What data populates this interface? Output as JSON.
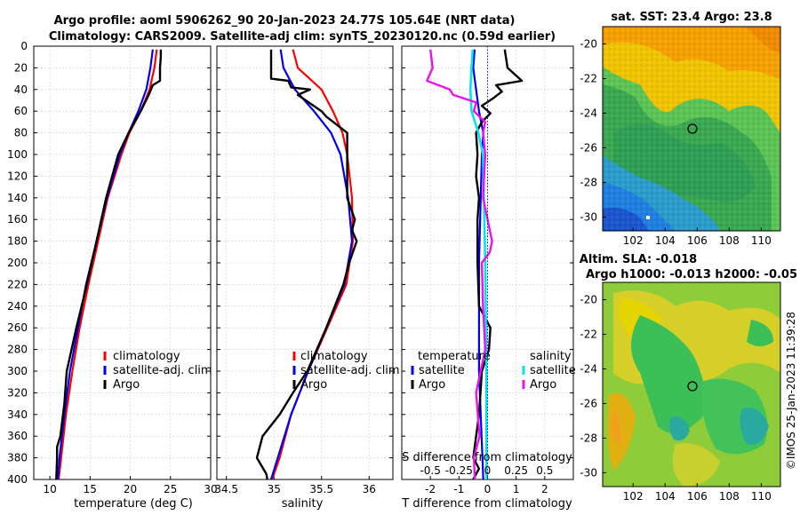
{
  "header": {
    "title_line1": "Argo profile: aoml 5906262_90 20-Jan-2023 24.77S 105.64E (NRT data)",
    "title_line2": "Climatology: CARS2009. Satellite-adj clim: synTS_20230120.nc (0.59d earlier)"
  },
  "footer": {
    "stamp": "©IMOS 25-Jan-2023 11:39:28"
  },
  "colors": {
    "climatology": "#ff0000",
    "satellite": "#0000ee",
    "argo": "#000000",
    "salinity_sat": "#00e5ee",
    "salinity_argo": "#ee11ee",
    "zero_line": "#1010cc"
  },
  "chart_data": [
    {
      "id": "temperature",
      "type": "line",
      "xlabel": "temperature (deg C)",
      "ylabel": "",
      "xlim": [
        8,
        30
      ],
      "ylim": [
        400,
        0
      ],
      "xticks": [
        "10",
        "15",
        "20",
        "25",
        "30"
      ],
      "xtick_values": [
        10,
        15,
        20,
        25,
        30
      ],
      "yticks": [
        "0",
        "20",
        "40",
        "60",
        "80",
        "100",
        "120",
        "140",
        "160",
        "180",
        "200",
        "220",
        "240",
        "260",
        "280",
        "300",
        "320",
        "340",
        "360",
        "380",
        "400"
      ],
      "legend": [
        "climatology",
        "satellite-adj. clim",
        "Argo"
      ],
      "series": [
        {
          "name": "climatology",
          "depth": [
            3,
            20,
            40,
            60,
            80,
            100,
            140,
            180,
            220,
            260,
            300,
            340,
            380,
            400
          ],
          "values": [
            23.3,
            23.0,
            22.4,
            21.3,
            19.9,
            18.9,
            17.2,
            16.0,
            14.8,
            13.7,
            12.8,
            12.0,
            11.4,
            11.1
          ]
        },
        {
          "name": "satellite-adj. clim",
          "depth": [
            3,
            20,
            40,
            60,
            80,
            100,
            140,
            180,
            220,
            260,
            300,
            340,
            380,
            400
          ],
          "values": [
            22.8,
            22.5,
            22.0,
            21.0,
            19.8,
            18.7,
            17.1,
            15.8,
            14.5,
            13.5,
            12.5,
            11.8,
            11.2,
            11.0
          ]
        },
        {
          "name": "Argo",
          "depth": [
            3,
            10,
            20,
            32,
            36,
            45,
            60,
            80,
            100,
            140,
            180,
            220,
            260,
            300,
            330,
            360,
            370,
            380,
            400
          ],
          "values": [
            23.8,
            23.8,
            23.7,
            23.7,
            22.8,
            22.3,
            21.3,
            19.8,
            18.5,
            17.0,
            15.8,
            14.6,
            13.3,
            12.1,
            11.8,
            11.3,
            10.9,
            10.9,
            10.8
          ]
        }
      ]
    },
    {
      "id": "salinity",
      "type": "line",
      "xlabel": "salinity",
      "ylabel": "",
      "xlim": [
        34.4,
        36.25
      ],
      "ylim": [
        400,
        0
      ],
      "xticks": [
        "34.5",
        "35",
        "35.5",
        "36"
      ],
      "xtick_values": [
        34.5,
        35,
        35.5,
        36
      ],
      "legend": [
        "climatology",
        "satellite-adj. clim",
        "Argo"
      ],
      "series": [
        {
          "name": "climatology",
          "depth": [
            3,
            20,
            40,
            60,
            80,
            100,
            140,
            180,
            220,
            260,
            300,
            340,
            380,
            400
          ],
          "values": [
            35.2,
            35.25,
            35.5,
            35.62,
            35.72,
            35.77,
            35.82,
            35.83,
            35.76,
            35.56,
            35.36,
            35.18,
            35.06,
            34.98
          ]
        },
        {
          "name": "satellite-adj. clim",
          "depth": [
            3,
            20,
            40,
            60,
            80,
            100,
            140,
            180,
            220,
            260,
            300,
            340,
            380,
            400
          ],
          "values": [
            35.07,
            35.1,
            35.22,
            35.42,
            35.6,
            35.7,
            35.78,
            35.82,
            35.74,
            35.55,
            35.36,
            35.18,
            35.04,
            34.97
          ]
        },
        {
          "name": "Argo",
          "depth": [
            3,
            30,
            32,
            38,
            40,
            45,
            60,
            65,
            80,
            100,
            140,
            160,
            170,
            180,
            200,
            220,
            260,
            300,
            320,
            340,
            360,
            380,
            395,
            400
          ],
          "values": [
            34.97,
            34.97,
            35.15,
            35.18,
            35.38,
            35.25,
            35.5,
            35.55,
            35.77,
            35.77,
            35.77,
            35.85,
            35.82,
            35.87,
            35.79,
            35.73,
            35.55,
            35.35,
            35.2,
            35.06,
            34.88,
            34.82,
            34.92,
            34.93
          ]
        }
      ]
    },
    {
      "id": "difference",
      "type": "line",
      "xlabel": "T difference from climatology",
      "secondary_xlabel": "S difference from climatology",
      "xlim": [
        -3,
        3
      ],
      "ylim": [
        400,
        0
      ],
      "xticks": [
        "-2",
        "-1",
        "0",
        "1",
        "2"
      ],
      "xtick_values": [
        -2,
        -1,
        0,
        1,
        2
      ],
      "secondary_xticks": [
        "-0.5",
        "-0.25",
        "0",
        "0.25",
        "0.5"
      ],
      "secondary_xtick_values": [
        -0.5,
        -0.25,
        0,
        0.25,
        0.5
      ],
      "legend_temperature_title": "temperature",
      "legend_salinity_title": "salinity",
      "legend_temperature": [
        "satellite",
        "Argo"
      ],
      "legend_salinity": [
        "satellite",
        "Argo"
      ],
      "series": [
        {
          "name": "temperature satellite",
          "depth": [
            3,
            20,
            40,
            60,
            80,
            100,
            200,
            300,
            400
          ],
          "values": [
            -0.45,
            -0.5,
            -0.4,
            -0.3,
            -0.15,
            -0.2,
            -0.3,
            -0.3,
            -0.15
          ]
        },
        {
          "name": "temperature Argo",
          "depth": [
            3,
            20,
            32,
            36,
            42,
            48,
            55,
            62,
            70,
            80,
            100,
            120,
            140,
            160,
            200,
            240,
            260,
            280,
            300,
            340,
            370,
            380,
            390,
            400
          ],
          "values": [
            0.6,
            0.7,
            1.2,
            0.3,
            0.5,
            0.2,
            -0.2,
            0.1,
            -0.2,
            -0.4,
            -0.35,
            -0.4,
            -0.3,
            -0.35,
            -0.35,
            -0.3,
            0.1,
            0.05,
            -0.2,
            -0.3,
            -0.45,
            -0.5,
            -0.3,
            -0.5
          ]
        },
        {
          "name": "salinity satellite",
          "depth": [
            3,
            20,
            40,
            60,
            80,
            100,
            200,
            300,
            400
          ],
          "values": [
            -0.13,
            -0.14,
            -0.15,
            -0.14,
            -0.08,
            -0.04,
            -0.02,
            -0.01,
            -0.01
          ]
        },
        {
          "name": "salinity Argo",
          "depth": [
            3,
            20,
            32,
            40,
            45,
            52,
            60,
            70,
            80,
            100,
            140,
            180,
            190,
            200,
            240,
            280,
            320,
            360,
            380,
            400
          ],
          "values": [
            -0.5,
            -0.48,
            -0.53,
            -0.33,
            -0.3,
            -0.1,
            -0.12,
            -0.02,
            -0.04,
            -0.02,
            -0.04,
            0.04,
            0.02,
            -0.05,
            -0.04,
            -0.02,
            -0.1,
            -0.07,
            -0.12,
            -0.11
          ]
        }
      ]
    },
    {
      "id": "sst_map",
      "type": "heatmap",
      "title": "sat. SST: 23.4 Argo: 23.8",
      "xticks": [
        "102",
        "104",
        "106",
        "108",
        "110"
      ],
      "xtick_values": [
        102,
        104,
        106,
        108,
        110
      ],
      "yticks": [
        "-20",
        "-22",
        "-24",
        "-26",
        "-28",
        "-30"
      ],
      "ytick_values": [
        -20,
        -22,
        -24,
        -26,
        -28,
        -30
      ],
      "xlim": [
        100.1,
        111.2
      ],
      "ylim": [
        -30.8,
        -19.0
      ],
      "argo_position": [
        105.64,
        -24.77
      ]
    },
    {
      "id": "sla_map",
      "type": "heatmap",
      "title_line1": "Altim. SLA: -0.018",
      "title_line2": "Argo h1000: -0.013 h2000: -0.05",
      "xticks": [
        "102",
        "104",
        "106",
        "108",
        "110"
      ],
      "xtick_values": [
        102,
        104,
        106,
        108,
        110
      ],
      "yticks": [
        "-20",
        "-22",
        "-24",
        "-26",
        "-28",
        "-30"
      ],
      "ytick_values": [
        -20,
        -22,
        -24,
        -26,
        -28,
        -30
      ],
      "xlim": [
        100.1,
        111.2
      ],
      "ylim": [
        -30.8,
        -19.0
      ],
      "argo_position": [
        105.64,
        -24.77
      ]
    }
  ]
}
